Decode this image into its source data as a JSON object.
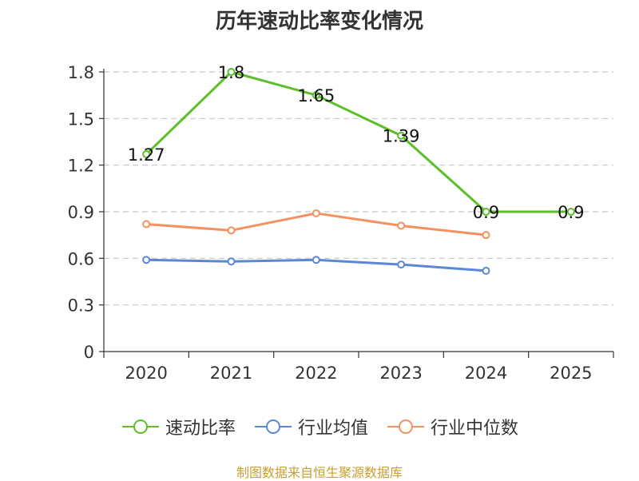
{
  "chart_data": {
    "type": "line",
    "title": "历年速动比率变化情况",
    "categories": [
      "2020",
      "2021",
      "2022",
      "2023",
      "2024",
      "2025"
    ],
    "ylim": [
      0,
      1.8
    ],
    "yticks": [
      0,
      0.3,
      0.6,
      0.9,
      1.2,
      1.5,
      1.8
    ],
    "ytick_labels": [
      "0",
      "0.3",
      "0.6",
      "0.9",
      "1.2",
      "1.5",
      "1.8"
    ],
    "grid": true,
    "series": [
      {
        "name": "速动比率",
        "color": "#5cbf2a",
        "values": [
          1.27,
          1.8,
          1.65,
          1.39,
          0.9,
          0.9
        ],
        "labels": [
          "1.27",
          "1.8",
          "1.65",
          "1.39",
          "0.9",
          "0.9"
        ]
      },
      {
        "name": "行业均值",
        "color": "#5b87d9",
        "values": [
          0.59,
          0.58,
          0.59,
          0.56,
          0.52,
          null
        ]
      },
      {
        "name": "行业中位数",
        "color": "#f59060",
        "values": [
          0.82,
          0.78,
          0.89,
          0.81,
          0.75,
          null
        ]
      }
    ],
    "legend_position": "bottom",
    "source": "制图数据来自恒生聚源数据库"
  }
}
